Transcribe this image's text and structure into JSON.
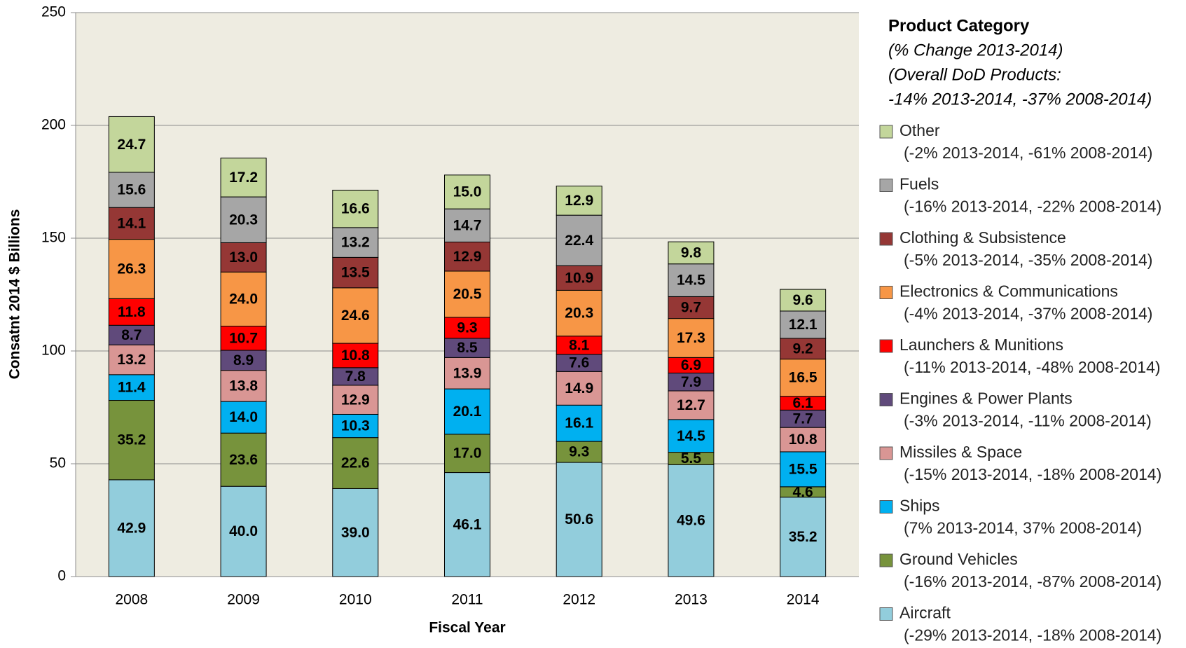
{
  "chart_data": {
    "type": "stacked_bar",
    "x_label": "Fiscal Year",
    "y_label": "Consatnt 2014 $ Billions",
    "legend_title": "Product Category",
    "legend_subtitle": [
      "(% Change 2013-2014)",
      "(Overall DoD Products:",
      "-14% 2013-2014, -37% 2008-2014)"
    ],
    "legend_position": "right",
    "categories": [
      "2008",
      "2009",
      "2010",
      "2011",
      "2012",
      "2013",
      "2014"
    ],
    "ylim": [
      0,
      250
    ],
    "yticks": [
      0,
      50,
      100,
      150,
      200,
      250
    ],
    "grid": true,
    "series": [
      {
        "name": "Aircraft",
        "note": "(-29% 2013-2014, -18% 2008-2014)",
        "color": "#92cddc",
        "values": [
          42.9,
          40.0,
          39.0,
          46.1,
          50.6,
          49.6,
          35.2
        ],
        "value_labels": [
          "42.9",
          "40.0",
          "39.0",
          "46.1",
          "50.6",
          "49.6",
          "35.2"
        ]
      },
      {
        "name": "Ground Vehicles",
        "note": "(-16% 2013-2014, -87% 2008-2014)",
        "color": "#77933c",
        "values": [
          35.2,
          23.6,
          22.6,
          17.0,
          9.3,
          5.5,
          4.6
        ],
        "value_labels": [
          "35.2",
          "23.6",
          "22.6",
          "17.0",
          "9.3",
          "5.5",
          "4.6"
        ]
      },
      {
        "name": "Ships",
        "note": "(7% 2013-2014, 37% 2008-2014)",
        "color": "#00b0f0",
        "values": [
          11.4,
          14.0,
          10.3,
          20.1,
          16.1,
          14.5,
          15.5
        ],
        "value_labels": [
          "11.4",
          "14.0",
          "10.3",
          "20.1",
          "16.1",
          "14.5",
          "15.5"
        ]
      },
      {
        "name": "Missiles & Space",
        "note": "(-15% 2013-2014, -18% 2008-2014)",
        "color": "#d99694",
        "values": [
          13.2,
          13.8,
          12.9,
          13.9,
          14.9,
          12.7,
          10.8
        ],
        "value_labels": [
          "13.2",
          "13.8",
          "12.9",
          "13.9",
          "14.9",
          "12.7",
          "10.8"
        ]
      },
      {
        "name": "Engines & Power Plants",
        "note": "(-3% 2013-2014, -11% 2008-2014)",
        "color": "#604a7b",
        "values": [
          8.7,
          8.9,
          7.8,
          8.5,
          7.6,
          7.9,
          7.7
        ],
        "value_labels": [
          "8.7",
          "8.9",
          "7.8",
          "8.5",
          "7.6",
          "7.9",
          "7.7"
        ]
      },
      {
        "name": "Launchers & Munitions",
        "note": "(-11% 2013-2014, -48% 2008-2014)",
        "color": "#ff0000",
        "values": [
          11.8,
          10.7,
          10.8,
          9.3,
          8.1,
          6.9,
          6.1
        ],
        "value_labels": [
          "11.8",
          "10.7",
          "10.8",
          "9.3",
          "8.1",
          "6.9",
          "6.1"
        ]
      },
      {
        "name": "Electronics & Communications",
        "note": "(-4% 2013-2014, -37% 2008-2014)",
        "color": "#f79646",
        "values": [
          26.3,
          24.0,
          24.6,
          20.5,
          20.3,
          17.3,
          16.5
        ],
        "value_labels": [
          "26.3",
          "24.0",
          "24.6",
          "20.5",
          "20.3",
          "17.3",
          "16.5"
        ]
      },
      {
        "name": "Clothing & Subsistence",
        "note": "(-5% 2013-2014, -35% 2008-2014)",
        "color": "#953735",
        "values": [
          14.1,
          13.0,
          13.5,
          12.9,
          10.9,
          9.7,
          9.2
        ],
        "value_labels": [
          "14.1",
          "13.0",
          "13.5",
          "12.9",
          "10.9",
          "9.7",
          "9.2"
        ]
      },
      {
        "name": "Fuels",
        "note": "(-16% 2013-2014, -22% 2008-2014)",
        "color": "#a6a6a6",
        "values": [
          15.6,
          20.3,
          13.2,
          14.7,
          22.4,
          14.5,
          12.1
        ],
        "value_labels": [
          "15.6",
          "20.3",
          "13.2",
          "14.7",
          "22.4",
          "14.5",
          "12.1"
        ]
      },
      {
        "name": "Other",
        "note": "(-2% 2013-2014, -61% 2008-2014)",
        "color": "#c3d69b",
        "values": [
          24.7,
          17.2,
          16.6,
          15.0,
          12.9,
          9.8,
          9.6
        ],
        "value_labels": [
          "24.7",
          "17.2",
          "16.6",
          "15.0",
          "12.9",
          "9.8",
          "9.6"
        ]
      }
    ]
  }
}
